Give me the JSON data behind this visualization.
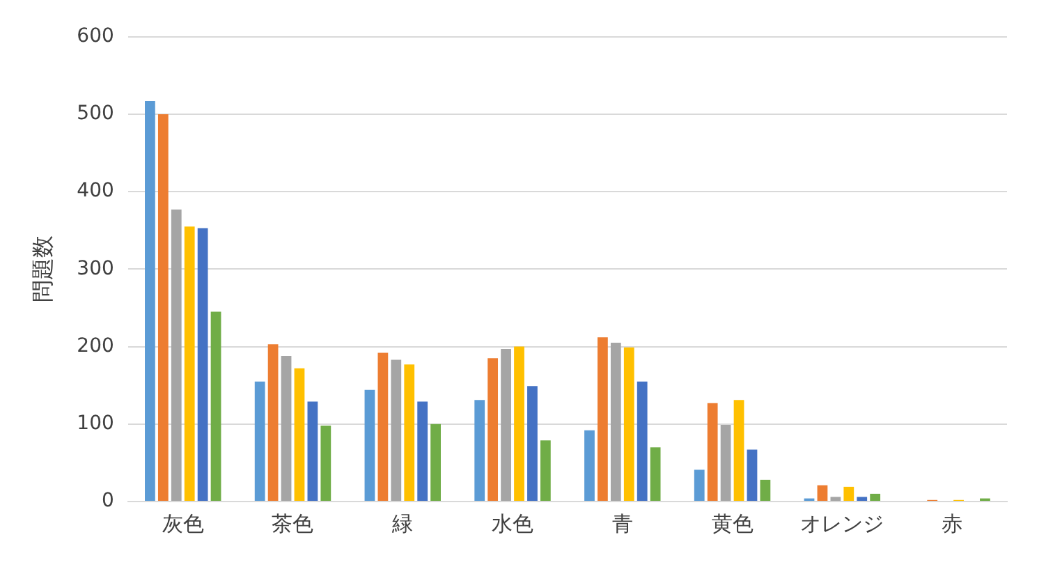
{
  "chart_data": {
    "type": "bar",
    "ylabel": "問題数",
    "categories": [
      "灰色",
      "茶色",
      "緑",
      "水色",
      "青",
      "黄色",
      "オレンジ",
      "赤"
    ],
    "series": [
      {
        "color": "#5b9bd5",
        "values": [
          517,
          155,
          144,
          131,
          92,
          41,
          4,
          0
        ]
      },
      {
        "color": "#ed7d31",
        "values": [
          500,
          203,
          192,
          185,
          212,
          127,
          21,
          2
        ]
      },
      {
        "color": "#a5a5a5",
        "values": [
          377,
          188,
          183,
          197,
          205,
          99,
          6,
          0
        ]
      },
      {
        "color": "#ffc000",
        "values": [
          355,
          172,
          177,
          200,
          199,
          131,
          19,
          2
        ]
      },
      {
        "color": "#4472c4",
        "values": [
          353,
          129,
          129,
          149,
          155,
          67,
          6,
          0
        ]
      },
      {
        "color": "#70ad47",
        "values": [
          245,
          98,
          100,
          79,
          70,
          28,
          10,
          4
        ]
      }
    ],
    "ylim": [
      0,
      600
    ],
    "yticks": [
      0,
      100,
      200,
      300,
      400,
      500,
      600
    ],
    "grid": "y",
    "legend": false
  }
}
